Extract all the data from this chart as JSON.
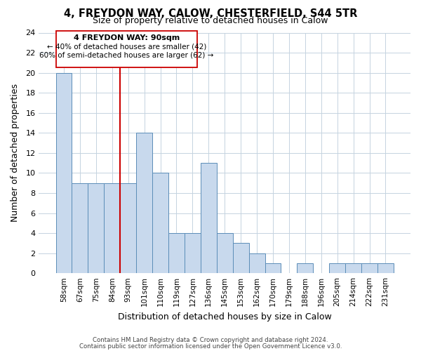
{
  "title1": "4, FREYDON WAY, CALOW, CHESTERFIELD, S44 5TR",
  "title2": "Size of property relative to detached houses in Calow",
  "xlabel": "Distribution of detached houses by size in Calow",
  "ylabel": "Number of detached properties",
  "categories": [
    "58sqm",
    "67sqm",
    "75sqm",
    "84sqm",
    "93sqm",
    "101sqm",
    "110sqm",
    "119sqm",
    "127sqm",
    "136sqm",
    "145sqm",
    "153sqm",
    "162sqm",
    "170sqm",
    "179sqm",
    "188sqm",
    "196sqm",
    "205sqm",
    "214sqm",
    "222sqm",
    "231sqm"
  ],
  "values": [
    20,
    9,
    9,
    9,
    9,
    14,
    10,
    4,
    4,
    11,
    4,
    3,
    2,
    1,
    0,
    1,
    0,
    1,
    1,
    1,
    1
  ],
  "bar_color": "#c8d9ed",
  "bar_edge_color": "#5b8db8",
  "ylim": [
    0,
    24
  ],
  "yticks": [
    0,
    2,
    4,
    6,
    8,
    10,
    12,
    14,
    16,
    18,
    20,
    22,
    24
  ],
  "ref_line_color": "#cc0000",
  "annotation_box_color": "#cc0000",
  "annotation_text_line1": "4 FREYDON WAY: 90sqm",
  "annotation_text_line2": "← 40% of detached houses are smaller (42)",
  "annotation_text_line3": "60% of semi-detached houses are larger (62) →",
  "footer1": "Contains HM Land Registry data © Crown copyright and database right 2024.",
  "footer2": "Contains public sector information licensed under the Open Government Licence v3.0.",
  "background_color": "#ffffff",
  "grid_color": "#c5d3e0"
}
